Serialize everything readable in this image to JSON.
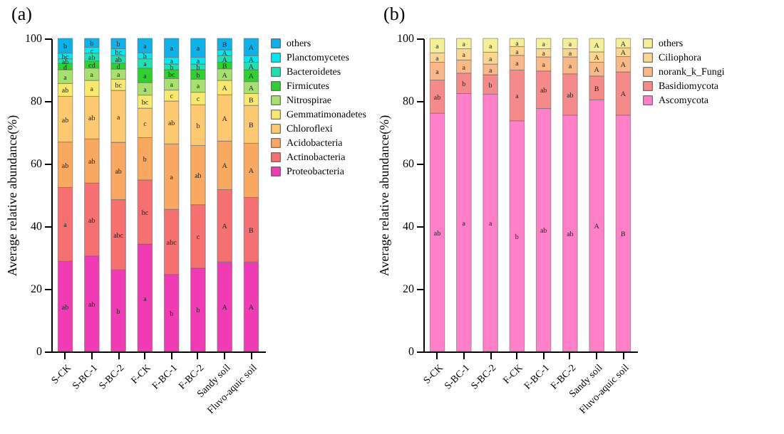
{
  "chart_data": [
    {
      "type": "bar",
      "title": "(a)",
      "ylabel": "Average relative abundance(%)",
      "stacked": true,
      "legend": "right",
      "grid": false,
      "categories": [
        "S-CK",
        "S-BC-1",
        "S-BC-2",
        "F-CK",
        "F-BC-1",
        "F-BC-2",
        "Sandy soil",
        "Fluvo-aquic soil"
      ],
      "ylim": [
        0,
        100
      ],
      "yticks": [
        0,
        20,
        40,
        60,
        80,
        100
      ],
      "series": [
        {
          "name": "Proteobacteria",
          "color": "#f03cb4",
          "values": [
            28.8,
            30.5,
            26.1,
            34.3,
            24.6,
            26.6,
            28.6,
            28.6
          ],
          "value_labels": [
            "ab",
            "ab",
            "b",
            "a",
            "b",
            "b",
            "A",
            "A"
          ]
        },
        {
          "name": "Actinobacteria",
          "color": "#f57070",
          "values": [
            23.6,
            23.3,
            22.4,
            20.5,
            20.8,
            20.3,
            23.1,
            20.6
          ],
          "value_labels": [
            "a",
            "ab",
            "abc",
            "bc",
            "abc",
            "c",
            "A",
            "B"
          ]
        },
        {
          "name": "Acidobacteria",
          "color": "#f8a860",
          "values": [
            14.5,
            14.1,
            18.3,
            13.5,
            20.9,
            18.9,
            15.5,
            17.3
          ],
          "value_labels": [
            "ab",
            "ab",
            "ab",
            "b",
            "a",
            "ab",
            "A",
            "A"
          ]
        },
        {
          "name": "Chloroflexi",
          "color": "#fcc870",
          "values": [
            14.6,
            13.6,
            16.6,
            9.4,
            13.7,
            13.0,
            14.8,
            12.1
          ],
          "value_labels": [
            "ab",
            "ab",
            "a",
            "c",
            "ab",
            "b",
            "A",
            "B"
          ]
        },
        {
          "name": "Gemmatimonadetes",
          "color": "#f8e870",
          "values": [
            4.1,
            5.1,
            3.6,
            4.2,
            3.5,
            4.0,
            4.6,
            3.8
          ],
          "value_labels": [
            "ab",
            "a",
            "bc",
            "bc",
            "c",
            "c",
            "A",
            "B"
          ]
        },
        {
          "name": "Nitrospirae",
          "color": "#a8e070",
          "values": [
            4.4,
            3.9,
            3.2,
            4.0,
            3.7,
            4.2,
            3.7,
            3.8
          ],
          "value_labels": [
            "a",
            "a",
            "a",
            "a",
            "a",
            "a",
            "A",
            "A"
          ]
        },
        {
          "name": "Firmicutes",
          "color": "#30d030",
          "values": [
            2.0,
            2.3,
            1.9,
            4.6,
            2.8,
            3.0,
            2.1,
            3.8
          ],
          "value_labels": [
            "d",
            "cd",
            "d",
            "a",
            "bc",
            "b",
            "B",
            "A"
          ]
        },
        {
          "name": "Bacteroidetes",
          "color": "#20e0b0",
          "values": [
            1.5,
            2.5,
            2.4,
            3.0,
            1.8,
            1.8,
            2.1,
            2.4
          ],
          "value_labels": [
            "ab",
            "ab",
            "ab",
            "a",
            "b",
            "b",
            "A",
            "A"
          ]
        },
        {
          "name": "Planctomycetes",
          "color": "#00e8f0",
          "values": [
            1.8,
            1.9,
            2.2,
            1.9,
            2.2,
            2.2,
            1.8,
            2.1
          ],
          "value_labels": [
            "bc",
            "c",
            "bc",
            "b",
            "a",
            "a",
            "A",
            "A"
          ]
        },
        {
          "name": "others",
          "color": "#10b0e8",
          "values": [
            4.7,
            2.8,
            3.3,
            4.6,
            6.0,
            6.0,
            3.7,
            5.5
          ],
          "value_labels": [
            "b",
            "b",
            "b",
            "a",
            "a",
            "a",
            "B",
            "A"
          ]
        }
      ]
    },
    {
      "type": "bar",
      "title": "(b)",
      "ylabel": "Average relative abundance(%)",
      "stacked": true,
      "legend": "right",
      "grid": false,
      "categories": [
        "S-CK",
        "S-BC-1",
        "S-BC-2",
        "F-CK",
        "F-BC-1",
        "F-BC-2",
        "Sandy soil",
        "Fluvo-aquic soil"
      ],
      "ylim": [
        0,
        100
      ],
      "yticks": [
        0,
        20,
        40,
        60,
        80,
        100
      ],
      "series": [
        {
          "name": "Ascomycota",
          "color": "#ff80c8",
          "values": [
            76.1,
            82.4,
            82.2,
            73.7,
            77.6,
            75.5,
            80.4,
            75.5
          ],
          "value_labels": [
            "ab",
            "a",
            "a",
            "b",
            "ab",
            "ab",
            "A",
            "B"
          ]
        },
        {
          "name": "Basidiomycota",
          "color": "#f58a8a",
          "values": [
            10.6,
            6.5,
            6.2,
            16.2,
            12.0,
            13.2,
            7.6,
            13.8
          ],
          "value_labels": [
            "ab",
            "b",
            "b",
            "a",
            "ab",
            "ab",
            "B",
            "A"
          ]
        },
        {
          "name": "norank_k_Fungi",
          "color": "#f8b888",
          "values": [
            5.7,
            4.2,
            3.4,
            4.7,
            4.5,
            5.4,
            4.4,
            4.9
          ],
          "value_labels": [
            "a",
            "a",
            "a",
            "a",
            "a",
            "a",
            "A",
            "A"
          ]
        },
        {
          "name": "Ciliophora",
          "color": "#fcd590",
          "values": [
            3.0,
            3.6,
            3.8,
            2.8,
            2.6,
            2.6,
            3.3,
            2.8
          ],
          "value_labels": [
            "a",
            "a",
            "a",
            "a",
            "a",
            "a",
            "A",
            "A"
          ]
        },
        {
          "name": "others",
          "color": "#f5ef9a",
          "values": [
            4.6,
            3.3,
            4.4,
            2.6,
            3.3,
            3.3,
            4.3,
            3.0
          ],
          "value_labels": [
            "a",
            "a",
            "a",
            "a",
            "a",
            "a",
            "A",
            "A"
          ]
        }
      ]
    }
  ]
}
